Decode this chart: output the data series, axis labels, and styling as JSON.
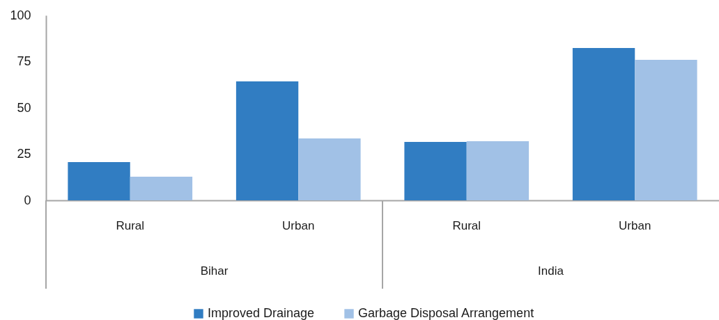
{
  "chart_data": {
    "type": "bar",
    "categories": [
      "Rural",
      "Urban",
      "Rural",
      "Urban"
    ],
    "series": [
      {
        "name": "Improved Drainage",
        "color": "#317dc2",
        "values": [
          20.7,
          64.3,
          31.6,
          82.3
        ]
      },
      {
        "name": "Garbage Disposal Arrangement",
        "color": "#a1c1e6",
        "values": [
          12.8,
          33.5,
          32.0,
          75.9
        ]
      }
    ],
    "annotations": [
      "Bihar",
      "India"
    ],
    "ylim": [
      0,
      100
    ],
    "yticks": [
      0,
      25,
      50,
      75,
      100
    ],
    "grid": false,
    "legend": "bottom"
  }
}
